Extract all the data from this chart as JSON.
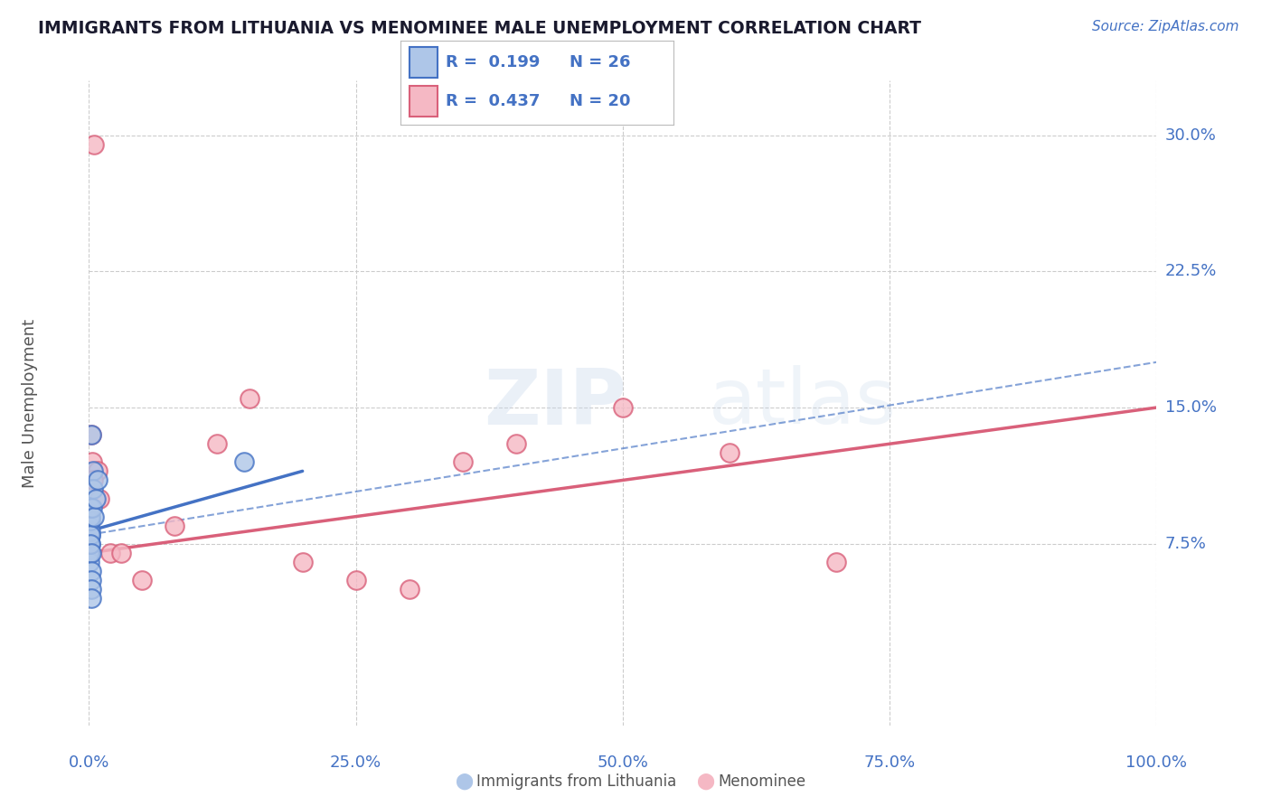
{
  "title": "IMMIGRANTS FROM LITHUANIA VS MENOMINEE MALE UNEMPLOYMENT CORRELATION CHART",
  "source": "Source: ZipAtlas.com",
  "xlabel_ticks": [
    "0.0%",
    "25.0%",
    "50.0%",
    "75.0%",
    "100.0%"
  ],
  "xlabel_vals": [
    0.0,
    25.0,
    50.0,
    75.0,
    100.0
  ],
  "ylabel_ticks": [
    "7.5%",
    "15.0%",
    "22.5%",
    "30.0%"
  ],
  "ylabel_vals": [
    7.5,
    15.0,
    22.5,
    30.0
  ],
  "xlim": [
    0,
    100
  ],
  "ylim": [
    -2.5,
    33
  ],
  "ylabel": "Male Unemployment",
  "blue_label": "Immigrants from Lithuania",
  "pink_label": "Menominee",
  "blue_R": "0.199",
  "blue_N": "26",
  "pink_R": "0.437",
  "pink_N": "20",
  "blue_color": "#aec6e8",
  "blue_edge_color": "#4472c4",
  "pink_color": "#f5b8c4",
  "pink_edge_color": "#d9607a",
  "watermark": "ZIPatlas",
  "blue_scatter_x": [
    0.05,
    0.06,
    0.07,
    0.08,
    0.09,
    0.1,
    0.11,
    0.12,
    0.13,
    0.14,
    0.15,
    0.16,
    0.17,
    0.18,
    0.19,
    0.2,
    0.21,
    0.22,
    0.3,
    0.35,
    0.4,
    0.5,
    0.6,
    0.8,
    14.5,
    0.25
  ],
  "blue_scatter_y": [
    8.5,
    7.8,
    7.2,
    6.5,
    7.0,
    8.0,
    7.5,
    8.2,
    8.8,
    9.0,
    9.5,
    8.0,
    7.5,
    7.0,
    6.0,
    5.5,
    5.0,
    4.5,
    9.5,
    11.5,
    10.5,
    9.0,
    10.0,
    11.0,
    12.0,
    13.5
  ],
  "pink_scatter_x": [
    0.2,
    0.3,
    0.5,
    0.8,
    1.0,
    2.0,
    3.0,
    5.0,
    8.0,
    12.0,
    15.0,
    20.0,
    25.0,
    30.0,
    35.0,
    40.0,
    50.0,
    60.0,
    70.0,
    0.4
  ],
  "pink_scatter_y": [
    13.5,
    12.0,
    29.5,
    11.5,
    10.0,
    7.0,
    7.0,
    5.5,
    8.5,
    13.0,
    15.5,
    6.5,
    5.5,
    5.0,
    12.0,
    13.0,
    15.0,
    12.5,
    6.5,
    11.0
  ],
  "blue_line_x0": 0.0,
  "blue_line_x1": 20.0,
  "blue_line_y0": 8.2,
  "blue_line_y1": 11.5,
  "blue_dash_x0": 0.0,
  "blue_dash_x1": 100.0,
  "blue_dash_y0": 8.0,
  "blue_dash_y1": 17.5,
  "pink_line_x0": 0.0,
  "pink_line_x1": 100.0,
  "pink_line_y0": 7.0,
  "pink_line_y1": 15.0,
  "background_color": "#ffffff",
  "grid_color": "#cccccc",
  "title_color": "#1a1a2e",
  "source_color": "#4472c4",
  "axis_label_color": "#4472c4",
  "ylabel_color": "#555555"
}
